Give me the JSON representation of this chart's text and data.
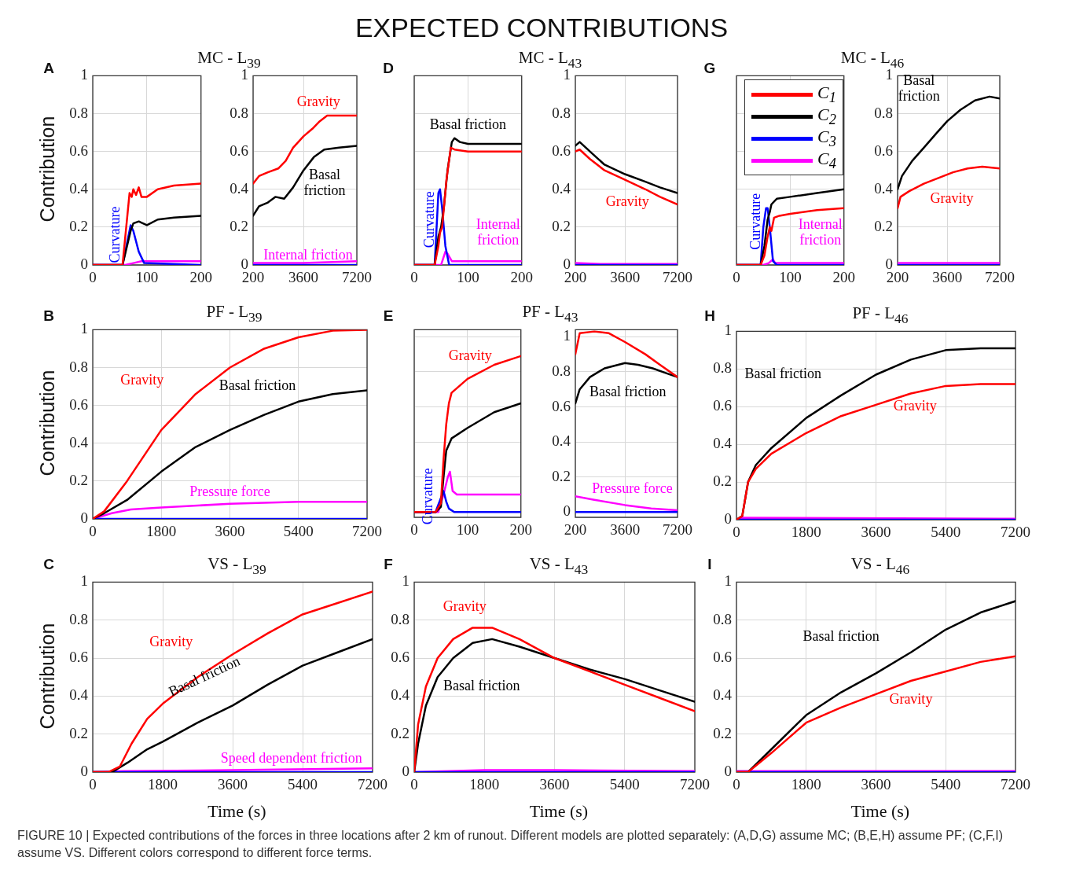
{
  "chart_data": [
    {
      "type": "line",
      "title": "MC - L$_{39}$",
      "ylabel": "Contribution",
      "xlim": [
        0,
        200
      ],
      "ylim": [
        0,
        1
      ],
      "xticks": [
        0,
        100,
        200
      ],
      "yticks": [
        0,
        0.2,
        0.4,
        0.6,
        0.8,
        1
      ],
      "grid": true,
      "annotations": [
        "EXPECTED CONTRIBUTIONS",
        "A",
        "FIGURE 10 | Expected contributions of the forces in three locations after 2 km of runout. Different models are plotted separately: (A,D,G) assume MC; (B,E,H) assume PF; (C,F,I) assume VS. Different colors correspond to different force terms.",
        "Curvature"
      ],
      "series": [
        {
          "color": "#ff0000",
          "x": [
            0,
            55,
            68,
            72,
            75,
            80,
            85,
            90,
            100,
            120,
            150,
            200
          ],
          "values": [
            0,
            0,
            0.38,
            0.36,
            0.4,
            0.37,
            0.41,
            0.36,
            0.36,
            0.4,
            0.42,
            0.43
          ]
        },
        {
          "color": "#000000",
          "x": [
            0,
            55,
            70,
            75,
            85,
            100,
            120,
            150,
            200
          ],
          "values": [
            0,
            0,
            0.18,
            0.22,
            0.23,
            0.21,
            0.24,
            0.25,
            0.26
          ]
        },
        {
          "color": "#0000ff",
          "x": [
            0,
            55,
            70,
            75,
            85,
            95,
            200
          ],
          "values": [
            0,
            0,
            0.21,
            0.18,
            0.07,
            0.01,
            0
          ]
        },
        {
          "color": "#ff00ff",
          "x": [
            0,
            60,
            75,
            90,
            200
          ],
          "values": [
            0,
            0,
            0.01,
            0.02,
            0.02
          ]
        }
      ]
    },
    {
      "type": "line",
      "xlim": [
        200,
        7200
      ],
      "ylim": [
        0,
        1
      ],
      "xticks": [
        200,
        3600,
        7200
      ],
      "yticks": [
        0,
        0.2,
        0.4,
        0.6,
        0.8,
        1
      ],
      "grid": true,
      "annotations": [
        "Gravity",
        "Basal friction",
        "Internal friction"
      ],
      "series": [
        {
          "color": "#ff0000",
          "x": [
            200,
            600,
            1200,
            1900,
            2400,
            2900,
            3600,
            4200,
            4700,
            5200,
            6000,
            7200
          ],
          "values": [
            0.43,
            0.47,
            0.49,
            0.51,
            0.55,
            0.62,
            0.68,
            0.72,
            0.76,
            0.79,
            0.79,
            0.79
          ]
        },
        {
          "color": "#000000",
          "x": [
            200,
            600,
            1200,
            1700,
            2300,
            2900,
            3600,
            4300,
            5000,
            6000,
            7200
          ],
          "values": [
            0.26,
            0.31,
            0.33,
            0.36,
            0.35,
            0.41,
            0.5,
            0.57,
            0.61,
            0.62,
            0.63
          ]
        },
        {
          "color": "#0000ff",
          "x": [
            200,
            7200
          ],
          "values": [
            0,
            0
          ]
        },
        {
          "color": "#ff00ff",
          "x": [
            200,
            3600,
            7200
          ],
          "values": [
            0.01,
            0.01,
            0.02
          ]
        }
      ]
    },
    {
      "type": "line",
      "title": "MC - L$_{43}$",
      "xlim": [
        0,
        200
      ],
      "ylim": [
        0,
        1
      ],
      "xticks": [
        0,
        100,
        200
      ],
      "yticks": [
        0,
        0.2,
        0.4,
        0.6,
        0.8,
        1
      ],
      "grid": true,
      "tick_labels": "x",
      "annotations": [
        "D",
        "Basal friction",
        "Curvature",
        "Internal friction"
      ],
      "series": [
        {
          "color": "#ff0000",
          "x": [
            0,
            38,
            45,
            48,
            52,
            60,
            68,
            75,
            100,
            200
          ],
          "values": [
            0,
            0,
            0.1,
            0.17,
            0.2,
            0.45,
            0.62,
            0.61,
            0.6,
            0.6
          ]
        },
        {
          "color": "#000000",
          "x": [
            0,
            38,
            45,
            50,
            55,
            62,
            70,
            75,
            85,
            100,
            200
          ],
          "values": [
            0,
            0,
            0.15,
            0.2,
            0.3,
            0.5,
            0.65,
            0.67,
            0.65,
            0.64,
            0.64
          ]
        },
        {
          "color": "#0000ff",
          "x": [
            0,
            38,
            45,
            48,
            52,
            58,
            65,
            200
          ],
          "values": [
            0,
            0,
            0.38,
            0.4,
            0.3,
            0.1,
            0,
            0
          ]
        },
        {
          "color": "#ff00ff",
          "x": [
            0,
            50,
            58,
            62,
            70,
            200
          ],
          "values": [
            0,
            0,
            0.07,
            0.06,
            0.02,
            0.02
          ]
        }
      ]
    },
    {
      "type": "line",
      "xlim": [
        200,
        7200
      ],
      "ylim": [
        0,
        1
      ],
      "xticks": [
        200,
        3600,
        7200
      ],
      "yticks": [
        0,
        0.2,
        0.4,
        0.6,
        0.8,
        1
      ],
      "grid": true,
      "annotations": [
        "Gravity"
      ],
      "series": [
        {
          "color": "#ff0000",
          "x": [
            200,
            500,
            1200,
            2200,
            3600,
            5000,
            6000,
            7200
          ],
          "values": [
            0.6,
            0.61,
            0.56,
            0.5,
            0.45,
            0.4,
            0.36,
            0.32
          ]
        },
        {
          "color": "#000000",
          "x": [
            200,
            500,
            1200,
            2200,
            3600,
            5000,
            6000,
            7200
          ],
          "values": [
            0.63,
            0.65,
            0.6,
            0.53,
            0.48,
            0.44,
            0.41,
            0.38
          ]
        },
        {
          "color": "#0000ff",
          "x": [
            200,
            7200
          ],
          "values": [
            0,
            0
          ]
        },
        {
          "color": "#ff00ff",
          "x": [
            200,
            2000,
            7200
          ],
          "values": [
            0.01,
            0.005,
            0.005
          ]
        }
      ]
    },
    {
      "type": "line",
      "title": "MC - L$_{46}$",
      "xlim": [
        0,
        200
      ],
      "ylim": [
        0,
        1
      ],
      "xticks": [
        0,
        100,
        200
      ],
      "yticks": [
        0,
        0.2,
        0.4,
        0.6,
        0.8,
        1
      ],
      "grid": true,
      "tick_labels": "x",
      "legend": "top left",
      "annotations": [
        "G",
        "Curvature",
        "Internal friction"
      ],
      "series": [
        {
          "name": "C$_{1}$",
          "color": "#ff0000",
          "x": [
            0,
            45,
            52,
            58,
            62,
            65,
            70,
            80,
            100,
            150,
            200
          ],
          "values": [
            0,
            0,
            0.05,
            0.15,
            0.2,
            0.18,
            0.25,
            0.26,
            0.27,
            0.29,
            0.3
          ]
        },
        {
          "name": "C$_{2}$",
          "color": "#000000",
          "x": [
            0,
            45,
            52,
            58,
            62,
            65,
            75,
            100,
            150,
            200
          ],
          "values": [
            0,
            0,
            0.1,
            0.24,
            0.28,
            0.32,
            0.35,
            0.36,
            0.38,
            0.4
          ]
        },
        {
          "name": "C$_{3}$",
          "color": "#0000ff",
          "x": [
            0,
            45,
            50,
            55,
            58,
            62,
            68,
            75,
            200
          ],
          "values": [
            0,
            0,
            0.2,
            0.3,
            0.3,
            0.2,
            0.02,
            0,
            0
          ]
        },
        {
          "name": "C$_{4}$",
          "color": "#ff00ff",
          "x": [
            0,
            50,
            60,
            68,
            72,
            200
          ],
          "values": [
            0,
            0,
            0.01,
            0.03,
            0.01,
            0.01
          ]
        }
      ]
    },
    {
      "type": "line",
      "xlim": [
        200,
        7200
      ],
      "ylim": [
        0,
        1
      ],
      "xticks": [
        200,
        3600,
        7200
      ],
      "yticks": [
        0,
        0.2,
        0.4,
        0.6,
        0.8,
        1
      ],
      "grid": true,
      "annotations": [
        "Basal friction",
        "Gravity"
      ],
      "series": [
        {
          "color": "#ff0000",
          "x": [
            200,
            400,
            1000,
            2000,
            3000,
            4000,
            5000,
            6000,
            7200
          ],
          "values": [
            0.3,
            0.36,
            0.39,
            0.43,
            0.46,
            0.49,
            0.51,
            0.52,
            0.51
          ]
        },
        {
          "color": "#000000",
          "x": [
            200,
            500,
            1200,
            2000,
            2900,
            3600,
            4500,
            5500,
            6500,
            7200
          ],
          "values": [
            0.4,
            0.47,
            0.55,
            0.62,
            0.7,
            0.76,
            0.82,
            0.87,
            0.89,
            0.88
          ]
        },
        {
          "color": "#0000ff",
          "x": [
            200,
            7200
          ],
          "values": [
            0,
            0
          ]
        },
        {
          "color": "#ff00ff",
          "x": [
            200,
            7200
          ],
          "values": [
            0.01,
            0.01
          ]
        }
      ]
    },
    {
      "type": "line",
      "title": "PF - L$_{39}$",
      "ylabel": "Contribution",
      "xlim": [
        0,
        7200
      ],
      "ylim": [
        0,
        1
      ],
      "xticks": [
        0,
        1800,
        3600,
        5400,
        7200
      ],
      "yticks": [
        0,
        0.2,
        0.4,
        0.6,
        0.8,
        1
      ],
      "grid": true,
      "annotations": [
        "B",
        "Gravity",
        "Basal friction",
        "Pressure force"
      ],
      "series": [
        {
          "color": "#ff0000",
          "x": [
            0,
            300,
            900,
            1800,
            2700,
            3600,
            4500,
            5400,
            6300,
            7200
          ],
          "values": [
            0,
            0.04,
            0.2,
            0.47,
            0.66,
            0.8,
            0.9,
            0.96,
            0.995,
            1
          ]
        },
        {
          "color": "#000000",
          "x": [
            0,
            300,
            900,
            1800,
            2700,
            3600,
            4500,
            5400,
            6300,
            7200
          ],
          "values": [
            0,
            0.03,
            0.1,
            0.25,
            0.38,
            0.47,
            0.55,
            0.62,
            0.66,
            0.68
          ]
        },
        {
          "color": "#0000ff",
          "x": [
            0,
            7200
          ],
          "values": [
            0,
            0
          ]
        },
        {
          "color": "#ff00ff",
          "x": [
            0,
            500,
            1000,
            1800,
            3600,
            5400,
            7200
          ],
          "values": [
            0,
            0.03,
            0.05,
            0.06,
            0.08,
            0.09,
            0.09
          ]
        }
      ]
    },
    {
      "type": "line",
      "title": "PF - L$_{43}$",
      "xlim": [
        0,
        200
      ],
      "ylim": [
        -0.03,
        1.04
      ],
      "xticks": [
        0,
        100,
        200
      ],
      "yticks": [
        0,
        0.2,
        0.4,
        0.6,
        0.8,
        1
      ],
      "grid": true,
      "tick_labels": "x",
      "annotations": [
        "E",
        "Gravity",
        "Curvature"
      ],
      "series": [
        {
          "color": "#ff0000",
          "x": [
            0,
            40,
            50,
            55,
            60,
            65,
            70,
            100,
            150,
            200
          ],
          "values": [
            0,
            0,
            0.05,
            0.3,
            0.5,
            0.62,
            0.68,
            0.76,
            0.84,
            0.89
          ]
        },
        {
          "color": "#000000",
          "x": [
            0,
            40,
            50,
            55,
            60,
            70,
            100,
            150,
            200
          ],
          "values": [
            0,
            0,
            0.03,
            0.2,
            0.35,
            0.42,
            0.48,
            0.57,
            0.62
          ]
        },
        {
          "color": "#0000ff",
          "x": [
            0,
            40,
            50,
            55,
            60,
            65,
            75,
            200
          ],
          "values": [
            0,
            0,
            0.08,
            0.12,
            0.06,
            0.02,
            0,
            0
          ]
        },
        {
          "color": "#ff00ff",
          "x": [
            0,
            45,
            55,
            63,
            67,
            72,
            80,
            130,
            200
          ],
          "values": [
            0,
            0,
            0.1,
            0.2,
            0.23,
            0.12,
            0.1,
            0.1,
            0.1
          ]
        }
      ]
    },
    {
      "type": "line",
      "xlim": [
        200,
        7200
      ],
      "ylim": [
        -0.03,
        1.04
      ],
      "xticks": [
        200,
        3600,
        7200
      ],
      "yticks": [
        0,
        0.2,
        0.4,
        0.6,
        0.8,
        1
      ],
      "grid": true,
      "annotations": [
        "Basal friction",
        "Pressure force"
      ],
      "series": [
        {
          "color": "#ff0000",
          "x": [
            200,
            500,
            1500,
            2500,
            3600,
            5000,
            6000,
            7200
          ],
          "values": [
            0.9,
            1.02,
            1.03,
            1.02,
            0.97,
            0.9,
            0.84,
            0.77
          ]
        },
        {
          "color": "#000000",
          "x": [
            200,
            500,
            1200,
            2200,
            3600,
            4500,
            5500,
            6500,
            7200
          ],
          "values": [
            0.62,
            0.7,
            0.77,
            0.82,
            0.85,
            0.84,
            0.82,
            0.79,
            0.77
          ]
        },
        {
          "color": "#0000ff",
          "x": [
            200,
            7200
          ],
          "values": [
            0,
            0
          ]
        },
        {
          "color": "#ff00ff",
          "x": [
            200,
            1500,
            3600,
            5400,
            7200
          ],
          "values": [
            0.09,
            0.07,
            0.04,
            0.02,
            0.01
          ]
        }
      ]
    },
    {
      "type": "line",
      "title": "PF - L$_{46}$",
      "xlim": [
        0,
        7200
      ],
      "ylim": [
        0,
        1
      ],
      "xticks": [
        0,
        1800,
        3600,
        5400,
        7200
      ],
      "yticks": [
        0,
        0.2,
        0.4,
        0.6,
        0.8,
        1
      ],
      "grid": true,
      "annotations": [
        "H",
        "Basal friction",
        "Gravity"
      ],
      "series": [
        {
          "color": "#ff0000",
          "x": [
            0,
            150,
            300,
            500,
            900,
            1800,
            2700,
            3600,
            4500,
            5400,
            6300,
            7200
          ],
          "values": [
            0,
            0.02,
            0.2,
            0.27,
            0.35,
            0.46,
            0.55,
            0.61,
            0.67,
            0.71,
            0.72,
            0.72
          ]
        },
        {
          "color": "#000000",
          "x": [
            0,
            150,
            300,
            500,
            900,
            1800,
            2700,
            3600,
            4500,
            5400,
            6300,
            7200
          ],
          "values": [
            0,
            0.02,
            0.2,
            0.29,
            0.38,
            0.54,
            0.66,
            0.77,
            0.85,
            0.9,
            0.91,
            0.91
          ]
        },
        {
          "color": "#0000ff",
          "x": [
            0,
            7200
          ],
          "values": [
            0,
            0
          ]
        },
        {
          "color": "#ff00ff",
          "x": [
            0,
            150,
            7200
          ],
          "values": [
            0,
            0.01,
            0.005
          ]
        }
      ]
    },
    {
      "type": "line",
      "title": "VS - L$_{39}$",
      "xlabel": "Time (s)",
      "ylabel": "Contribution",
      "xlim": [
        0,
        7200
      ],
      "ylim": [
        0,
        1
      ],
      "xticks": [
        0,
        1800,
        3600,
        5400,
        7200
      ],
      "yticks": [
        0,
        0.2,
        0.4,
        0.6,
        0.8,
        1
      ],
      "grid": true,
      "annotations": [
        "C",
        "Gravity",
        "Basal friction",
        "Speed dependent friction"
      ],
      "series": [
        {
          "color": "#ff0000",
          "x": [
            0,
            400,
            700,
            1000,
            1400,
            1800,
            2700,
            3600,
            4500,
            5400,
            6300,
            7200
          ],
          "values": [
            0,
            0,
            0.03,
            0.15,
            0.28,
            0.36,
            0.5,
            0.62,
            0.73,
            0.83,
            0.89,
            0.95
          ]
        },
        {
          "color": "#000000",
          "x": [
            0,
            500,
            900,
            1400,
            1800,
            2700,
            3600,
            4500,
            5400,
            6300,
            7200
          ],
          "values": [
            0,
            0,
            0.05,
            0.12,
            0.16,
            0.26,
            0.35,
            0.46,
            0.56,
            0.63,
            0.7
          ]
        },
        {
          "color": "#0000ff",
          "x": [
            0,
            7200
          ],
          "values": [
            0,
            0
          ]
        },
        {
          "color": "#ff00ff",
          "x": [
            0,
            800,
            3600,
            7200
          ],
          "values": [
            0,
            0.005,
            0.01,
            0.02
          ]
        }
      ]
    },
    {
      "type": "line",
      "title": "VS - L$_{43}$",
      "xlabel": "Time (s)",
      "xlim": [
        0,
        7200
      ],
      "ylim": [
        0,
        1
      ],
      "xticks": [
        0,
        1800,
        3600,
        5400,
        7200
      ],
      "yticks": [
        0,
        0.2,
        0.4,
        0.6,
        0.8,
        1
      ],
      "grid": true,
      "annotations": [
        "F",
        "Gravity",
        "Basal friction"
      ],
      "series": [
        {
          "color": "#ff0000",
          "x": [
            0,
            100,
            300,
            600,
            1000,
            1500,
            2000,
            2700,
            3600,
            4500,
            5400,
            6300,
            7200
          ],
          "values": [
            0,
            0.25,
            0.45,
            0.6,
            0.7,
            0.76,
            0.76,
            0.7,
            0.6,
            0.53,
            0.46,
            0.39,
            0.32
          ]
        },
        {
          "color": "#000000",
          "x": [
            0,
            100,
            300,
            600,
            1000,
            1500,
            2000,
            2700,
            3600,
            4500,
            5400,
            6300,
            7200
          ],
          "values": [
            0,
            0.15,
            0.35,
            0.5,
            0.6,
            0.68,
            0.7,
            0.66,
            0.6,
            0.54,
            0.49,
            0.43,
            0.37
          ]
        },
        {
          "color": "#0000ff",
          "x": [
            0,
            7200
          ],
          "values": [
            0,
            0
          ]
        },
        {
          "color": "#ff00ff",
          "x": [
            0,
            1800,
            3600,
            7200
          ],
          "values": [
            0,
            0.01,
            0.01,
            0.005
          ]
        }
      ]
    },
    {
      "type": "line",
      "title": "VS - L$_{46}$",
      "xlabel": "Time (s)",
      "xlim": [
        0,
        7200
      ],
      "ylim": [
        0,
        1
      ],
      "xticks": [
        0,
        1800,
        3600,
        5400,
        7200
      ],
      "yticks": [
        0,
        0.2,
        0.4,
        0.6,
        0.8,
        1
      ],
      "grid": true,
      "annotations": [
        "I",
        "Basal friction",
        "Gravity"
      ],
      "series": [
        {
          "color": "#ff0000",
          "x": [
            0,
            300,
            900,
            1800,
            2700,
            3600,
            4500,
            5400,
            6300,
            7200
          ],
          "values": [
            0,
            0,
            0.1,
            0.26,
            0.34,
            0.41,
            0.48,
            0.53,
            0.58,
            0.61
          ]
        },
        {
          "color": "#000000",
          "x": [
            0,
            300,
            900,
            1800,
            2700,
            3600,
            4500,
            5400,
            6300,
            7200
          ],
          "values": [
            0,
            0,
            0.12,
            0.3,
            0.42,
            0.52,
            0.63,
            0.75,
            0.84,
            0.9
          ]
        },
        {
          "color": "#0000ff",
          "x": [
            0,
            7200
          ],
          "values": [
            0,
            0
          ]
        },
        {
          "color": "#ff00ff",
          "x": [
            0,
            7200
          ],
          "values": [
            0.005,
            0.005
          ]
        }
      ]
    }
  ]
}
